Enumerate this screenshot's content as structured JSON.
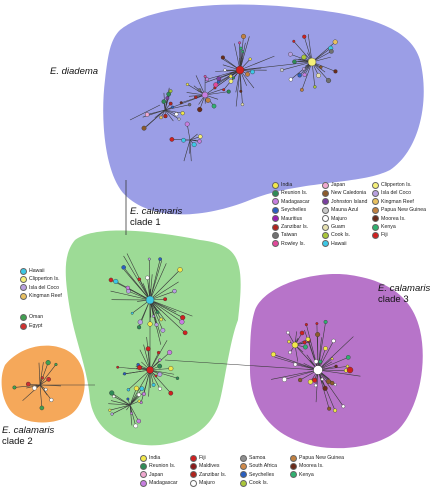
{
  "clades": {
    "diadema": {
      "name": "E. diadema",
      "sub": ""
    },
    "clade1": {
      "name": "E. calamaris",
      "sub": "clade 1"
    },
    "clade2": {
      "name": "E. calamaris",
      "sub": "clade 2"
    },
    "clade3": {
      "name": "E. calamaris",
      "sub": "clade 3"
    }
  },
  "colors": {
    "diadema_fill": "#9b9ee6",
    "clade1_fill": "#9ddb96",
    "clade2_fill": "#f5a85a",
    "clade3_fill": "#b774c9",
    "edge": "#3a3a3a"
  },
  "legend_top": [
    {
      "label": "India",
      "color": "#f2e84a"
    },
    {
      "label": "Reunion Is.",
      "color": "#2e8b57"
    },
    {
      "label": "Madagascar",
      "color": "#c77ee0"
    },
    {
      "label": "Seychelles",
      "color": "#2a5fc0"
    },
    {
      "label": "Mauritius",
      "color": "#9b1fb0"
    },
    {
      "label": "Zanzibar Is.",
      "color": "#b0241e"
    },
    {
      "label": "Taiwan",
      "color": "#707070"
    },
    {
      "label": "Rowley Is.",
      "color": "#e0489a"
    },
    {
      "label": "Japan",
      "color": "#f0a8d0"
    },
    {
      "label": "New Caledonia",
      "color": "#8b5a2b"
    },
    {
      "label": "Johnston Island",
      "color": "#7a3fa0"
    },
    {
      "label": "Mauna Azul",
      "color": "#c9c9c9"
    },
    {
      "label": "Majuro",
      "color": "#ffffff"
    },
    {
      "label": "Guam",
      "color": "#e6e0b0"
    },
    {
      "label": "Cook Is.",
      "color": "#a9c63a"
    },
    {
      "label": "Hawaii",
      "color": "#3cc8e6"
    },
    {
      "label": "Clipperton Is.",
      "color": "#f5f07a"
    },
    {
      "label": "Isla del Coco",
      "color": "#b8a0e0"
    },
    {
      "label": "Kingman Reef",
      "color": "#e8c060"
    },
    {
      "label": "Papua New Guinea",
      "color": "#c08040"
    },
    {
      "label": "Moorea Is.",
      "color": "#6a2a1a"
    },
    {
      "label": "Kenya",
      "color": "#30b070"
    },
    {
      "label": "Fiji",
      "color": "#d02020"
    }
  ],
  "legend_left": [
    {
      "label": "Hawaii",
      "color": "#3cc8e6"
    },
    {
      "label": "Clipperton Is.",
      "color": "#f5f07a"
    },
    {
      "label": "Isla del Coco",
      "color": "#b8a0e0"
    },
    {
      "label": "Kingman Reef",
      "color": "#e8c060"
    },
    {
      "label": "Oman",
      "color": "#40a050"
    },
    {
      "label": "Egypt",
      "color": "#d03030"
    }
  ],
  "legend_bottom": [
    {
      "label": "India",
      "color": "#f2e84a"
    },
    {
      "label": "Reunion Is.",
      "color": "#2e8b57"
    },
    {
      "label": "Japan",
      "color": "#f0a8d0"
    },
    {
      "label": "Madagascar",
      "color": "#c77ee0"
    },
    {
      "label": "Fiji",
      "color": "#d02020"
    },
    {
      "label": "Maldives",
      "color": "#8b1a1a"
    },
    {
      "label": "Zanzibar Is.",
      "color": "#b0241e"
    },
    {
      "label": "Majuro",
      "color": "#ffffff"
    },
    {
      "label": "Samoa",
      "color": "#909090"
    },
    {
      "label": "South Africa",
      "color": "#d08a4a"
    },
    {
      "label": "Seychelles",
      "color": "#2a5fc0"
    },
    {
      "label": "Cook Is.",
      "color": "#a9c63a"
    },
    {
      "label": "Papua New Guinea",
      "color": "#c08040"
    },
    {
      "label": "Moorea Is.",
      "color": "#6a2a1a"
    },
    {
      "label": "Kenya",
      "color": "#30b070"
    }
  ]
}
